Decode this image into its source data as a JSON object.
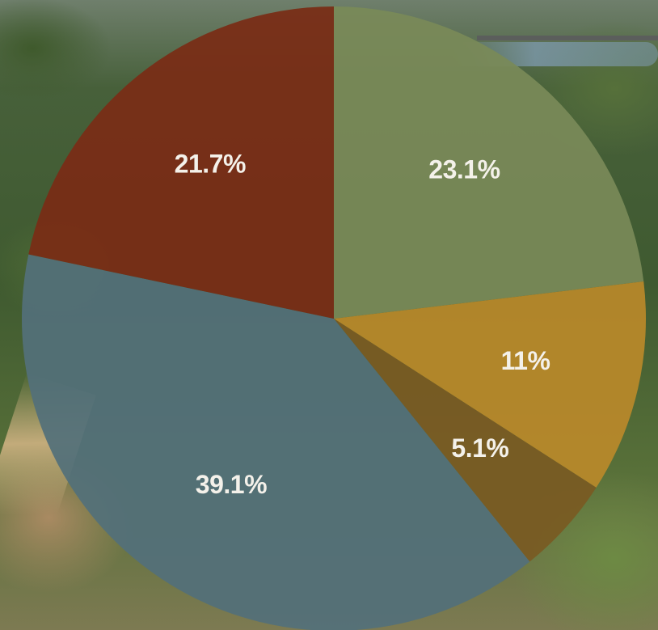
{
  "chart_data": {
    "type": "pie",
    "start_angle_deg": -90,
    "direction": "clockwise",
    "slices": [
      {
        "label": "23.1%",
        "value": 23.1,
        "color": "#7a8a58"
      },
      {
        "label": "11%",
        "value": 11.0,
        "color": "#b9892a"
      },
      {
        "label": "5.1%",
        "value": 5.1,
        "color": "#7a5a22"
      },
      {
        "label": "39.1%",
        "value": 39.1,
        "color": "#53707a"
      },
      {
        "label": "21.7%",
        "value": 21.7,
        "color": "#7a2c16"
      }
    ]
  }
}
